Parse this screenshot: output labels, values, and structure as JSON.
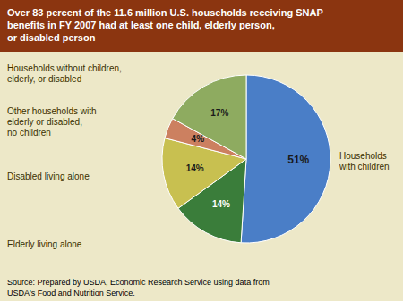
{
  "chart_data": {
    "type": "pie",
    "title": "Over 83 percent of the 11.6 million U.S. households receiving SNAP\nbenefits in FY 2007 had at least one child, elderly person,\nor disabled person",
    "categories": [
      "Households\nwith children",
      "Elderly living alone",
      "Disabled living alone",
      "Other households with\nelderly or disabled,\nno children",
      "Households without children,\nelderly, or disabled"
    ],
    "values": [
      51,
      14,
      14,
      4,
      17
    ],
    "value_labels": [
      "51%",
      "14%",
      "14%",
      "4%",
      "17%"
    ],
    "data_labels": true,
    "colors": [
      "#4A7EC7",
      "#3A7D3A",
      "#C8C050",
      "#CC8060",
      "#8EAB60"
    ],
    "source": "Source: Prepared by USDA, Economic Research Service using data from\nUSDA's Food and Nutrition Service."
  }
}
